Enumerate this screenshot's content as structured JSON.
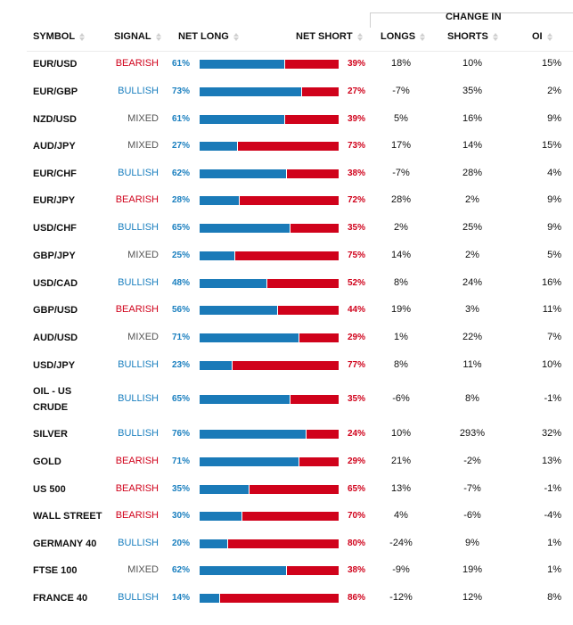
{
  "header": {
    "group_label": "CHANGE IN",
    "columns": {
      "symbol": "SYMBOL",
      "signal": "SIGNAL",
      "net_long": "NET LONG",
      "net_short": "NET SHORT",
      "longs": "LONGS",
      "shorts": "SHORTS",
      "oi": "OI"
    }
  },
  "colors": {
    "long": "#1a7ab8",
    "short": "#d0021b",
    "bullish": "#1a7fbf",
    "bearish": "#d0021b",
    "mixed": "#555555"
  },
  "rows": [
    {
      "symbol": "EUR/USD",
      "signal": "BEARISH",
      "net_long": "61%",
      "net_short": "39%",
      "long_pct": 61,
      "longs": "18%",
      "shorts": "10%",
      "oi": "15%"
    },
    {
      "symbol": "EUR/GBP",
      "signal": "BULLISH",
      "net_long": "73%",
      "net_short": "27%",
      "long_pct": 73,
      "longs": "-7%",
      "shorts": "35%",
      "oi": "2%"
    },
    {
      "symbol": "NZD/USD",
      "signal": "MIXED",
      "net_long": "61%",
      "net_short": "39%",
      "long_pct": 61,
      "longs": "5%",
      "shorts": "16%",
      "oi": "9%"
    },
    {
      "symbol": "AUD/JPY",
      "signal": "MIXED",
      "net_long": "27%",
      "net_short": "73%",
      "long_pct": 27,
      "longs": "17%",
      "shorts": "14%",
      "oi": "15%"
    },
    {
      "symbol": "EUR/CHF",
      "signal": "BULLISH",
      "net_long": "62%",
      "net_short": "38%",
      "long_pct": 62,
      "longs": "-7%",
      "shorts": "28%",
      "oi": "4%"
    },
    {
      "symbol": "EUR/JPY",
      "signal": "BEARISH",
      "net_long": "28%",
      "net_short": "72%",
      "long_pct": 28,
      "longs": "28%",
      "shorts": "2%",
      "oi": "9%"
    },
    {
      "symbol": "USD/CHF",
      "signal": "BULLISH",
      "net_long": "65%",
      "net_short": "35%",
      "long_pct": 65,
      "longs": "2%",
      "shorts": "25%",
      "oi": "9%"
    },
    {
      "symbol": "GBP/JPY",
      "signal": "MIXED",
      "net_long": "25%",
      "net_short": "75%",
      "long_pct": 25,
      "longs": "14%",
      "shorts": "2%",
      "oi": "5%"
    },
    {
      "symbol": "USD/CAD",
      "signal": "BULLISH",
      "net_long": "48%",
      "net_short": "52%",
      "long_pct": 48,
      "longs": "8%",
      "shorts": "24%",
      "oi": "16%"
    },
    {
      "symbol": "GBP/USD",
      "signal": "BEARISH",
      "net_long": "56%",
      "net_short": "44%",
      "long_pct": 56,
      "longs": "19%",
      "shorts": "3%",
      "oi": "11%"
    },
    {
      "symbol": "AUD/USD",
      "signal": "MIXED",
      "net_long": "71%",
      "net_short": "29%",
      "long_pct": 71,
      "longs": "1%",
      "shorts": "22%",
      "oi": "7%"
    },
    {
      "symbol": "USD/JPY",
      "signal": "BULLISH",
      "net_long": "23%",
      "net_short": "77%",
      "long_pct": 23,
      "longs": "8%",
      "shorts": "11%",
      "oi": "10%"
    },
    {
      "symbol": "OIL - US CRUDE",
      "signal": "BULLISH",
      "net_long": "65%",
      "net_short": "35%",
      "long_pct": 65,
      "longs": "-6%",
      "shorts": "8%",
      "oi": "-1%"
    },
    {
      "symbol": "SILVER",
      "signal": "BULLISH",
      "net_long": "76%",
      "net_short": "24%",
      "long_pct": 76,
      "longs": "10%",
      "shorts": "293%",
      "oi": "32%"
    },
    {
      "symbol": "GOLD",
      "signal": "BEARISH",
      "net_long": "71%",
      "net_short": "29%",
      "long_pct": 71,
      "longs": "21%",
      "shorts": "-2%",
      "oi": "13%"
    },
    {
      "symbol": "US 500",
      "signal": "BEARISH",
      "net_long": "35%",
      "net_short": "65%",
      "long_pct": 35,
      "longs": "13%",
      "shorts": "-7%",
      "oi": "-1%"
    },
    {
      "symbol": "WALL STREET",
      "signal": "BEARISH",
      "net_long": "30%",
      "net_short": "70%",
      "long_pct": 30,
      "longs": "4%",
      "shorts": "-6%",
      "oi": "-4%"
    },
    {
      "symbol": "GERMANY 40",
      "signal": "BULLISH",
      "net_long": "20%",
      "net_short": "80%",
      "long_pct": 20,
      "longs": "-24%",
      "shorts": "9%",
      "oi": "1%"
    },
    {
      "symbol": "FTSE 100",
      "signal": "MIXED",
      "net_long": "62%",
      "net_short": "38%",
      "long_pct": 62,
      "longs": "-9%",
      "shorts": "19%",
      "oi": "1%"
    },
    {
      "symbol": "FRANCE 40",
      "signal": "BULLISH",
      "net_long": "14%",
      "net_short": "86%",
      "long_pct": 14,
      "longs": "-12%",
      "shorts": "12%",
      "oi": "8%"
    }
  ]
}
